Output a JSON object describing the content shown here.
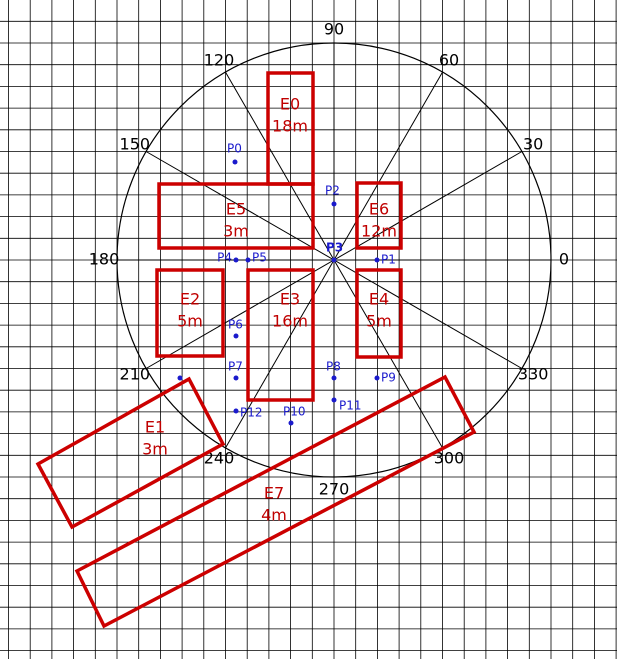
{
  "angles": [
    "0",
    "30",
    "60",
    "90",
    "120",
    "150",
    "180",
    "210",
    "240",
    "270",
    "300",
    "330"
  ],
  "elements": [
    {
      "name": "E0",
      "length": "18m"
    },
    {
      "name": "E1",
      "length": "3m"
    },
    {
      "name": "E2",
      "length": "5m"
    },
    {
      "name": "E3",
      "length": "16m"
    },
    {
      "name": "E4",
      "length": "5m"
    },
    {
      "name": "E5",
      "length": "3m"
    },
    {
      "name": "E6",
      "length": "12m"
    },
    {
      "name": "E7",
      "length": "4m"
    }
  ],
  "points": [
    "P0",
    "P1",
    "P2",
    "P3",
    "P4",
    "P5",
    "P6",
    "P7",
    "P8",
    "P9",
    "P10",
    "P11",
    "P12"
  ]
}
